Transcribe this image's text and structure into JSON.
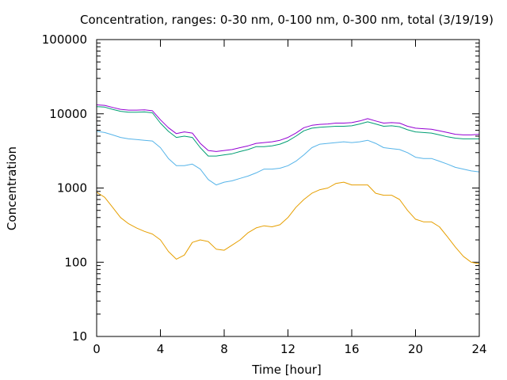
{
  "chart_data": {
    "type": "line",
    "title": "Concentration, ranges: 0-30 nm, 0-100 nm, 0-300 nm, total (3/19/19)",
    "xlabel": "Time [hour]",
    "ylabel": "Concentration",
    "xlim": [
      0,
      24
    ],
    "ylim": [
      10,
      100000
    ],
    "yscale": "log",
    "grid": false,
    "legend": "none",
    "x_ticks": [
      0,
      4,
      8,
      12,
      16,
      20,
      24
    ],
    "x_tick_labels": [
      "0",
      "4",
      "8",
      "12",
      "16",
      "20",
      "24"
    ],
    "y_ticks": [
      10,
      100,
      1000,
      10000,
      100000
    ],
    "y_tick_labels": [
      "10",
      "100",
      "1000",
      "10000",
      "100000"
    ],
    "x": [
      0,
      0.5,
      1,
      1.5,
      2,
      2.5,
      3,
      3.5,
      4,
      4.5,
      5,
      5.5,
      6,
      6.5,
      7,
      7.5,
      8,
      8.5,
      9,
      9.5,
      10,
      10.5,
      11,
      11.5,
      12,
      12.5,
      13,
      13.5,
      14,
      14.5,
      15,
      15.5,
      16,
      16.5,
      17,
      17.5,
      18,
      18.5,
      19,
      19.5,
      20,
      20.5,
      21,
      21.5,
      22,
      22.5,
      23,
      23.5,
      24
    ],
    "series": [
      {
        "color": "#9400d3",
        "values": [
          13200,
          13000,
          12200,
          11500,
          11200,
          11200,
          11300,
          11000,
          8300,
          6500,
          5400,
          5700,
          5500,
          4000,
          3200,
          3100,
          3200,
          3300,
          3500,
          3700,
          4000,
          4100,
          4200,
          4400,
          4800,
          5500,
          6500,
          7000,
          7200,
          7300,
          7500,
          7500,
          7600,
          8000,
          8600,
          8000,
          7500,
          7600,
          7500,
          6800,
          6400,
          6300,
          6200,
          5900,
          5600,
          5300,
          5200,
          5200,
          5300
        ]
      },
      {
        "color": "#009e73",
        "values": [
          12500,
          12300,
          11500,
          10800,
          10500,
          10500,
          10600,
          10300,
          7500,
          5800,
          4800,
          5000,
          4800,
          3500,
          2700,
          2700,
          2800,
          2900,
          3100,
          3300,
          3600,
          3600,
          3700,
          3900,
          4300,
          5000,
          5900,
          6400,
          6600,
          6700,
          6800,
          6800,
          6900,
          7300,
          7800,
          7300,
          6800,
          6900,
          6700,
          6100,
          5700,
          5600,
          5500,
          5200,
          4900,
          4700,
          4600,
          4600,
          4600
        ]
      },
      {
        "color": "#56b4e9",
        "values": [
          5800,
          5600,
          5200,
          4800,
          4600,
          4500,
          4400,
          4300,
          3500,
          2500,
          2000,
          2000,
          2100,
          1800,
          1300,
          1100,
          1200,
          1250,
          1350,
          1450,
          1600,
          1800,
          1800,
          1850,
          2000,
          2300,
          2800,
          3500,
          3900,
          4000,
          4100,
          4200,
          4100,
          4200,
          4400,
          4000,
          3500,
          3400,
          3300,
          3000,
          2600,
          2500,
          2500,
          2300,
          2100,
          1900,
          1800,
          1700,
          1650
        ]
      },
      {
        "color": "#e69f00",
        "values": [
          880,
          750,
          550,
          400,
          330,
          290,
          260,
          240,
          200,
          140,
          110,
          125,
          185,
          200,
          190,
          150,
          145,
          170,
          200,
          250,
          290,
          310,
          300,
          320,
          400,
          550,
          700,
          850,
          950,
          1000,
          1150,
          1200,
          1100,
          1100,
          1100,
          850,
          800,
          800,
          700,
          500,
          380,
          350,
          350,
          300,
          220,
          160,
          120,
          100,
          95
        ]
      }
    ]
  }
}
